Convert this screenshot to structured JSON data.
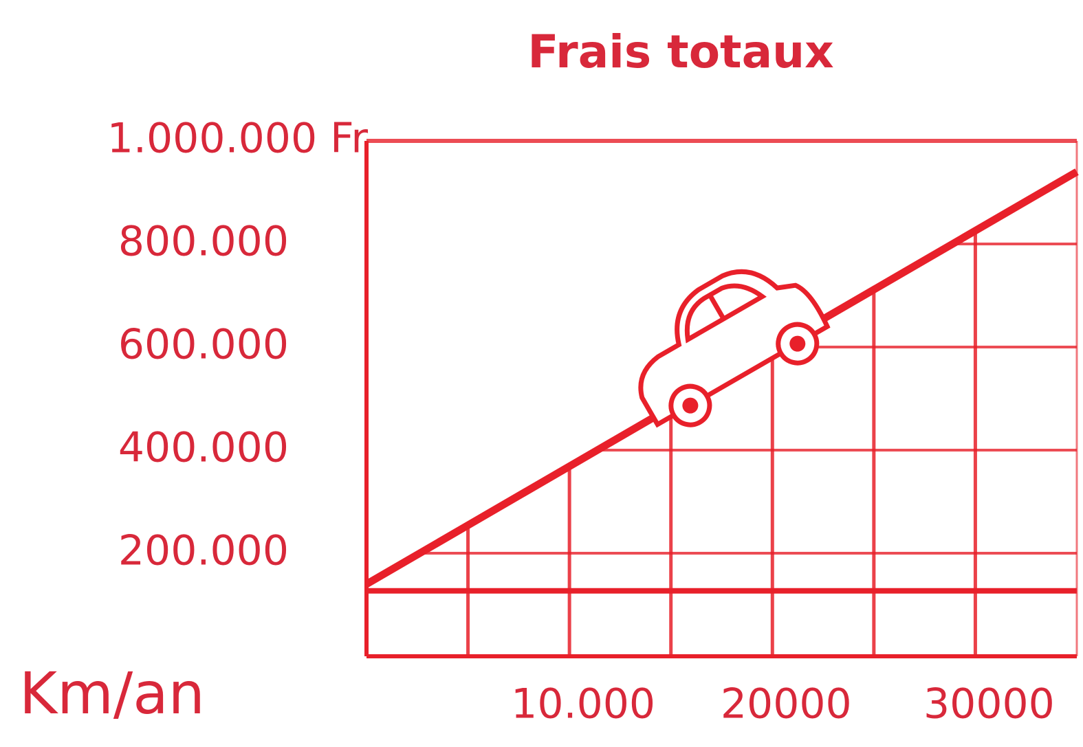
{
  "chart_data": {
    "type": "line",
    "title": "Frais totaux",
    "x_label": "Km/an",
    "x": [
      0,
      35000
    ],
    "series": [
      {
        "color": "#e8202a",
        "values": [
          140000,
          940000
        ]
      },
      {
        "color": "#e8202a",
        "values": [
          127000,
          127000
        ]
      }
    ],
    "xlim": [
      0,
      35000
    ],
    "xticks": [
      {
        "value": 10000,
        "label": "10.000"
      },
      {
        "value": 20000,
        "label": "20000"
      },
      {
        "value": 30000,
        "label": "30000"
      }
    ],
    "ylim": [
      0,
      1000000
    ],
    "yticks": [
      {
        "value": 200000,
        "label": "200.000"
      },
      {
        "value": 400000,
        "label": "400.000"
      },
      {
        "value": 600000,
        "label": "600.000"
      },
      {
        "value": 800000,
        "label": "800.000"
      },
      {
        "value": 1000000,
        "label": "1.000.000 Fr"
      }
    ],
    "grid": true
  }
}
